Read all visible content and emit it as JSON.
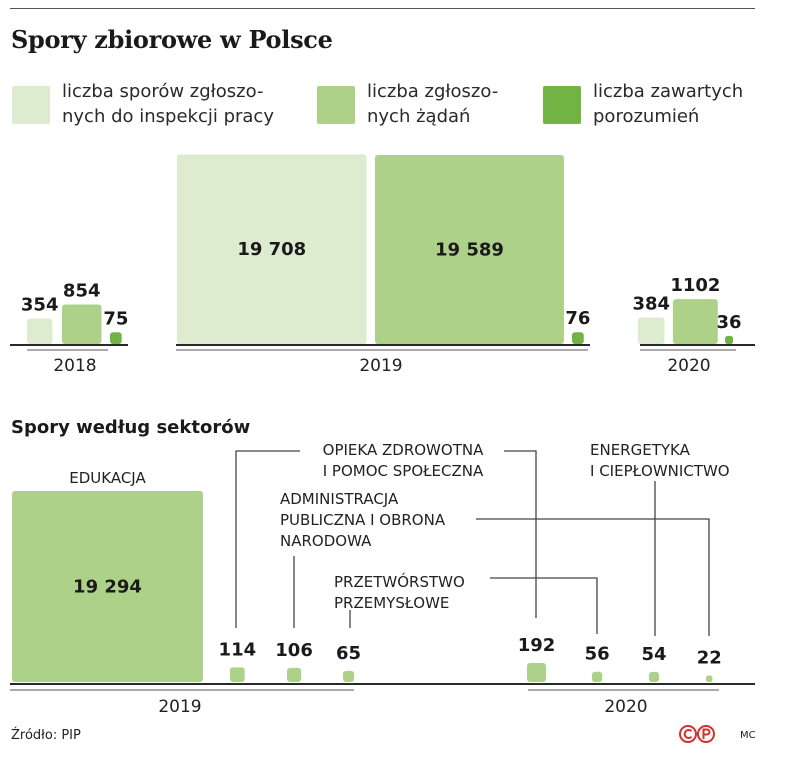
{
  "title": "Spory zbiorowe w Polsce",
  "legend": [
    {
      "label": "liczba sporów zgłoszo-\nnych do inspekcji pracy",
      "color": "#ddebcf"
    },
    {
      "label": "liczba zgłoszo-\nnych żądań",
      "color": "#aed18a"
    },
    {
      "label": "liczba zawartych\nporozumień",
      "color": "#72b444"
    }
  ],
  "subtitle": "Spory według sektorów",
  "source": "Źródło: PIP",
  "author": "MC",
  "chart_data": [
    {
      "type": "bar",
      "encoding": "area",
      "categories": [
        "2018",
        "2019",
        "2020"
      ],
      "series": [
        {
          "name": "liczba sporów zgłoszonych do inspekcji pracy",
          "values": [
            354,
            19708,
            384
          ],
          "labels": [
            "354",
            "19 708",
            "384"
          ],
          "color": "#ddebcf"
        },
        {
          "name": "liczba zgłoszonych żądań",
          "values": [
            854,
            19589,
            1102
          ],
          "labels": [
            "854",
            "19 589",
            "1102"
          ],
          "color": "#aed18a"
        },
        {
          "name": "liczba zawartych porozumień",
          "values": [
            75,
            76,
            36
          ],
          "labels": [
            "75",
            "76",
            "36"
          ],
          "color": "#72b444"
        }
      ]
    },
    {
      "type": "bar",
      "encoding": "area",
      "title": "Spory według sektorów",
      "groups": [
        {
          "year": "2019",
          "items": [
            {
              "sector": "EDUKACJA",
              "value": 19294,
              "label": "19 294"
            },
            {
              "sector": "OPIEKA ZDROWOTNA\nI POMOC SPOŁECZNA",
              "value": 114,
              "label": "114"
            },
            {
              "sector": "ADMINISTRACJA\nPUBLICZNA I OBRONA\nNARODOWA",
              "value": 106,
              "label": "106"
            },
            {
              "sector": "PRZETWÓRSTWO\nPRZEMYSŁOWE",
              "value": 65,
              "label": "65"
            }
          ]
        },
        {
          "year": "2020",
          "items": [
            {
              "sector": "OPIEKA ZDROWOTNA\nI POMOC SPOŁECZNA",
              "value": 192,
              "label": "192"
            },
            {
              "sector": "PRZETWÓRSTWO\nPRZEMYSŁOWE",
              "value": 56,
              "label": "56"
            },
            {
              "sector": "ENERGETYKA\nI CIEPŁOWNICTWO",
              "value": 54,
              "label": "54"
            },
            {
              "sector": "ADMINISTRACJA\nPUBLICZNA I OBRONA\nNARODOWA",
              "value": 22,
              "label": "22"
            }
          ]
        }
      ],
      "color": "#aed18a"
    }
  ]
}
